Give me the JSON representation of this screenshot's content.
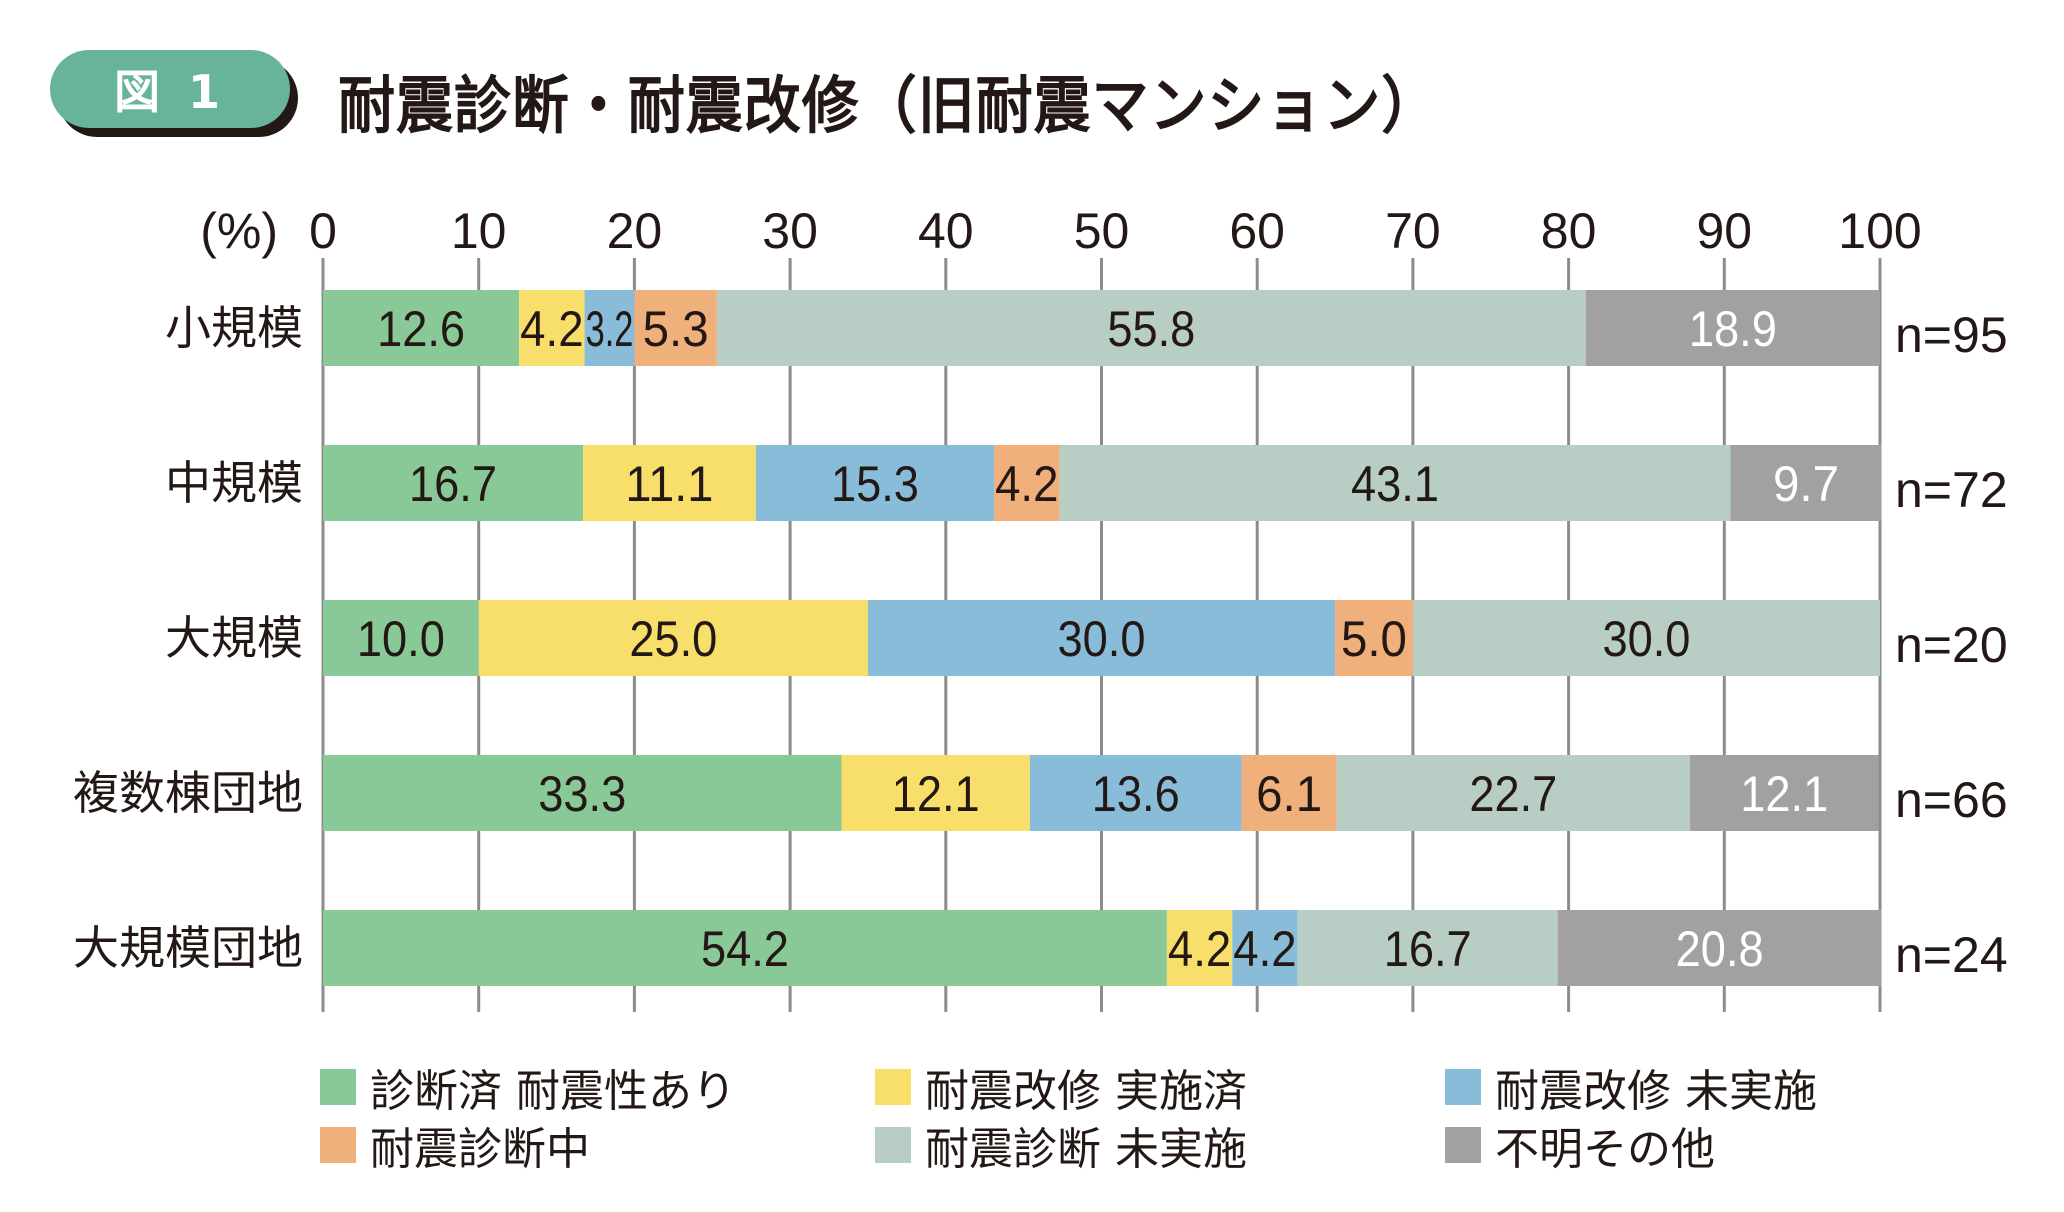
{
  "badge": {
    "label": "図 1"
  },
  "title": "耐震診断・耐震改修（旧耐震マンション）",
  "chart_data": {
    "type": "bar",
    "orientation": "horizontal",
    "stacked": true,
    "title": "耐震診断・耐震改修（旧耐震マンション）",
    "unit_label": "(%)",
    "xlim": [
      0,
      100
    ],
    "x_ticks": [
      0,
      10,
      20,
      30,
      40,
      50,
      60,
      70,
      80,
      90,
      100
    ],
    "grid": true,
    "legend_position": "bottom",
    "categories": [
      "小規模",
      "中規模",
      "大規模",
      "複数棟団地",
      "大規模団地"
    ],
    "sample_sizes": [
      "n=95",
      "n=72",
      "n=20",
      "n=66",
      "n=24"
    ],
    "series": [
      {
        "name": "診断済 耐震性あり",
        "color": "#89c997",
        "label_color": "#231815",
        "values": [
          12.6,
          16.7,
          10.0,
          33.3,
          54.2
        ]
      },
      {
        "name": "耐震改修 実施済",
        "color": "#f8df6b",
        "label_color": "#231815",
        "values": [
          4.2,
          11.1,
          25.0,
          12.1,
          4.2
        ]
      },
      {
        "name": "耐震改修 未実施",
        "color": "#89bcd9",
        "label_color": "#231815",
        "values": [
          3.2,
          15.3,
          30.0,
          13.6,
          4.2
        ]
      },
      {
        "name": "耐震診断中",
        "color": "#f0b07c",
        "label_color": "#231815",
        "values": [
          5.3,
          4.2,
          5.0,
          6.1,
          0
        ]
      },
      {
        "name": "耐震診断 未実施",
        "color": "#b8cdc4",
        "label_color": "#231815",
        "values": [
          55.8,
          43.1,
          30.0,
          22.7,
          16.7
        ]
      },
      {
        "name": "不明その他",
        "color": "#a0a1a0",
        "label_color": "#ffffff",
        "values": [
          18.9,
          9.7,
          0,
          12.1,
          20.8
        ]
      }
    ],
    "value_labels": [
      [
        "12.6",
        "4.2",
        "3.2",
        "5.3",
        "55.8",
        "18.9"
      ],
      [
        "16.7",
        "11.1",
        "15.3",
        "4.2",
        "43.1",
        "9.7"
      ],
      [
        "10.0",
        "25.0",
        "30.0",
        "5.0",
        "30.0",
        ""
      ],
      [
        "33.3",
        "12.1",
        "13.6",
        "6.1",
        "22.7",
        "12.1"
      ],
      [
        "54.2",
        "4.2",
        "4.2",
        "",
        "16.7",
        "20.8"
      ]
    ]
  },
  "colors": {
    "badge": "#68b39b",
    "text": "#231815",
    "grid": "#8c8c8c"
  }
}
